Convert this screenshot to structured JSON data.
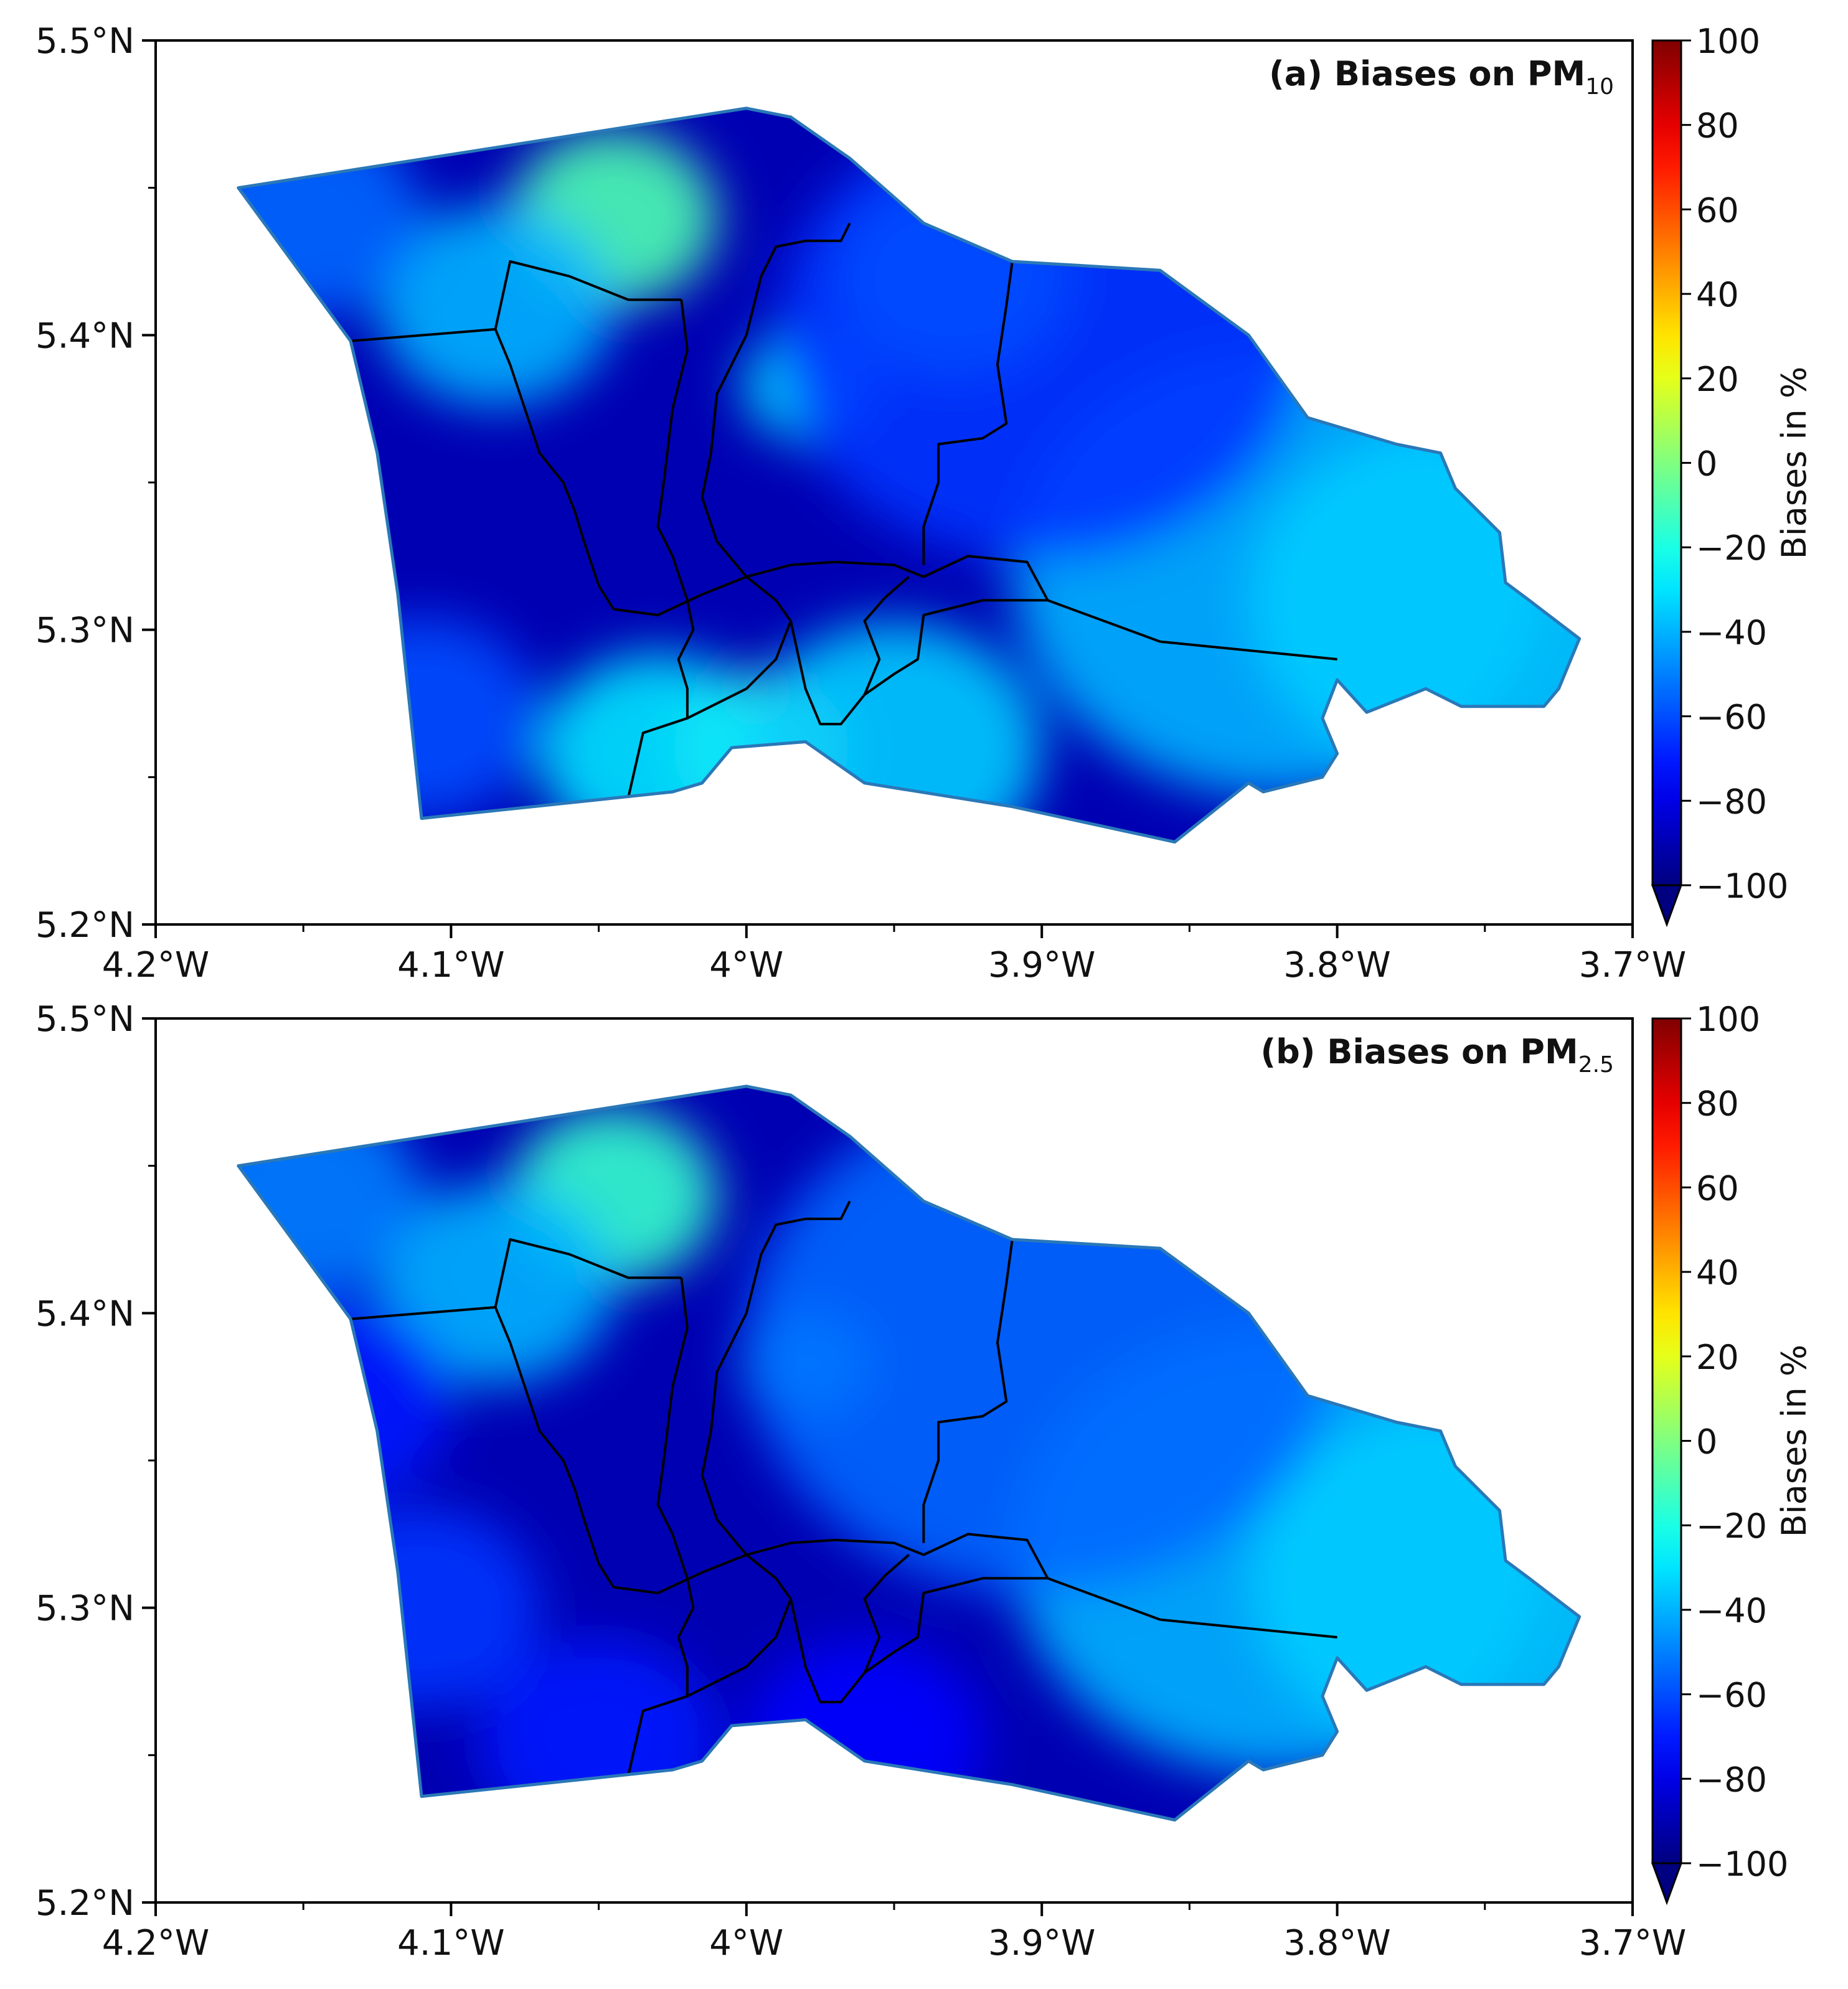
{
  "panels": [
    {
      "id": "a",
      "title": "(a) Biases on PM",
      "title_subscript": "10",
      "xlim": [
        -4.2,
        -3.7
      ],
      "ylim": [
        5.2,
        5.5
      ],
      "xticks": [
        {
          "value": -4.2,
          "label": "4.2°W"
        },
        {
          "value": -4.1,
          "label": "4.1°W"
        },
        {
          "value": -4.0,
          "label": "4°W"
        },
        {
          "value": -3.9,
          "label": "3.9°W"
        },
        {
          "value": -3.8,
          "label": "3.8°W"
        },
        {
          "value": -3.7,
          "label": "3.7°W"
        }
      ],
      "yticks": [
        {
          "value": 5.5,
          "label": "5.5°N"
        },
        {
          "value": 5.4,
          "label": "5.4°N"
        },
        {
          "value": 5.3,
          "label": "5.3°N"
        },
        {
          "value": 5.2,
          "label": "5.2°N"
        }
      ],
      "background_bias": -90,
      "blobs": [
        {
          "lon": -4.045,
          "lat": 5.44,
          "bias": -10,
          "r": 0.035
        },
        {
          "lon": -3.979,
          "lat": 5.383,
          "bias": -30,
          "r": 0.022
        },
        {
          "lon": -4.085,
          "lat": 5.41,
          "bias": -40,
          "r": 0.04
        },
        {
          "lon": -4.15,
          "lat": 5.44,
          "bias": -55,
          "r": 0.04
        },
        {
          "lon": -3.995,
          "lat": 5.26,
          "bias": -10,
          "r": 0.03
        },
        {
          "lon": -4.03,
          "lat": 5.258,
          "bias": -30,
          "r": 0.04
        },
        {
          "lon": -3.95,
          "lat": 5.26,
          "bias": -35,
          "r": 0.05
        },
        {
          "lon": -3.82,
          "lat": 5.32,
          "bias": -40,
          "r": 0.09
        },
        {
          "lon": -3.76,
          "lat": 5.31,
          "bias": -35,
          "r": 0.07
        },
        {
          "lon": -3.9,
          "lat": 5.4,
          "bias": -65,
          "r": 0.09
        },
        {
          "lon": -4.11,
          "lat": 5.27,
          "bias": -60,
          "r": 0.04
        },
        {
          "lon": -3.93,
          "lat": 5.42,
          "bias": -60,
          "r": 0.04
        }
      ]
    },
    {
      "id": "b",
      "title": "(b) Biases on PM",
      "title_subscript": "2.5",
      "xlim": [
        -4.2,
        -3.7
      ],
      "ylim": [
        5.2,
        5.5
      ],
      "xticks": [
        {
          "value": -4.2,
          "label": "4.2°W"
        },
        {
          "value": -4.1,
          "label": "4.1°W"
        },
        {
          "value": -4.0,
          "label": "4°W"
        },
        {
          "value": -3.9,
          "label": "3.9°W"
        },
        {
          "value": -3.8,
          "label": "3.8°W"
        },
        {
          "value": -3.7,
          "label": "3.7°W"
        }
      ],
      "yticks": [
        {
          "value": 5.5,
          "label": "5.5°N"
        },
        {
          "value": 5.4,
          "label": "5.4°N"
        },
        {
          "value": 5.3,
          "label": "5.3°N"
        },
        {
          "value": 5.2,
          "label": "5.2°N"
        }
      ],
      "background_bias": -90,
      "blobs": [
        {
          "lon": -4.045,
          "lat": 5.44,
          "bias": -15,
          "r": 0.035
        },
        {
          "lon": -3.979,
          "lat": 5.383,
          "bias": -25,
          "r": 0.022
        },
        {
          "lon": -4.085,
          "lat": 5.41,
          "bias": -40,
          "r": 0.04
        },
        {
          "lon": -4.15,
          "lat": 5.44,
          "bias": -50,
          "r": 0.04
        },
        {
          "lon": -3.82,
          "lat": 5.32,
          "bias": -40,
          "r": 0.09
        },
        {
          "lon": -3.76,
          "lat": 5.31,
          "bias": -35,
          "r": 0.07
        },
        {
          "lon": -3.9,
          "lat": 5.39,
          "bias": -55,
          "r": 0.1
        },
        {
          "lon": -4.11,
          "lat": 5.3,
          "bias": -65,
          "r": 0.04
        },
        {
          "lon": -4.05,
          "lat": 5.255,
          "bias": -70,
          "r": 0.04
        },
        {
          "lon": -3.96,
          "lat": 5.255,
          "bias": -75,
          "r": 0.04
        },
        {
          "lon": -4.14,
          "lat": 5.37,
          "bias": -70,
          "r": 0.04
        }
      ]
    }
  ],
  "colorbar": {
    "label": "Biases in %",
    "min": -100,
    "max": 100,
    "extend": "min",
    "colormap": "jet",
    "ticks": [
      {
        "value": 100,
        "label": "100"
      },
      {
        "value": 80,
        "label": "80"
      },
      {
        "value": 60,
        "label": "60"
      },
      {
        "value": 40,
        "label": "40"
      },
      {
        "value": 20,
        "label": "20"
      },
      {
        "value": 0,
        "label": "0"
      },
      {
        "value": -20,
        "label": "−20"
      },
      {
        "value": -40,
        "label": "−40"
      },
      {
        "value": -60,
        "label": "−60"
      },
      {
        "value": -80,
        "label": "−80"
      },
      {
        "value": -100,
        "label": "−100"
      }
    ]
  },
  "study_area": {
    "outline": [
      [
        -4.172,
        5.45
      ],
      [
        -4.0,
        5.477
      ],
      [
        -3.985,
        5.474
      ],
      [
        -3.965,
        5.46
      ],
      [
        -3.94,
        5.438
      ],
      [
        -3.91,
        5.425
      ],
      [
        -3.86,
        5.422
      ],
      [
        -3.83,
        5.4
      ],
      [
        -3.81,
        5.372
      ],
      [
        -3.78,
        5.363
      ],
      [
        -3.765,
        5.36
      ],
      [
        -3.76,
        5.348
      ],
      [
        -3.745,
        5.333
      ],
      [
        -3.743,
        5.316
      ],
      [
        -3.735,
        5.31
      ],
      [
        -3.718,
        5.297
      ],
      [
        -3.725,
        5.28
      ],
      [
        -3.73,
        5.274
      ],
      [
        -3.758,
        5.274
      ],
      [
        -3.77,
        5.28
      ],
      [
        -3.79,
        5.272
      ],
      [
        -3.8,
        5.283
      ],
      [
        -3.805,
        5.27
      ],
      [
        -3.8,
        5.258
      ],
      [
        -3.805,
        5.25
      ],
      [
        -3.825,
        5.245
      ],
      [
        -3.83,
        5.248
      ],
      [
        -3.855,
        5.228
      ],
      [
        -3.91,
        5.24
      ],
      [
        -3.96,
        5.248
      ],
      [
        -3.98,
        5.262
      ],
      [
        -4.005,
        5.26
      ],
      [
        -4.015,
        5.248
      ],
      [
        -4.025,
        5.245
      ],
      [
        -4.11,
        5.236
      ],
      [
        -4.118,
        5.312
      ],
      [
        -4.125,
        5.36
      ],
      [
        -4.134,
        5.398
      ]
    ],
    "boundaries": [
      [
        [
          -4.134,
          5.398
        ],
        [
          -4.085,
          5.402
        ],
        [
          -4.08,
          5.425
        ],
        [
          -4.06,
          5.42
        ],
        [
          -4.04,
          5.412
        ],
        [
          -4.03,
          5.412
        ],
        [
          -4.022,
          5.412
        ]
      ],
      [
        [
          -4.085,
          5.402
        ],
        [
          -4.08,
          5.39
        ],
        [
          -4.075,
          5.375
        ],
        [
          -4.07,
          5.36
        ],
        [
          -4.062,
          5.35
        ],
        [
          -4.058,
          5.34
        ],
        [
          -4.055,
          5.33
        ],
        [
          -4.05,
          5.315
        ],
        [
          -4.045,
          5.307
        ]
      ],
      [
        [
          -4.022,
          5.412
        ],
        [
          -4.02,
          5.395
        ],
        [
          -4.025,
          5.375
        ],
        [
          -4.028,
          5.35
        ],
        [
          -4.03,
          5.335
        ],
        [
          -4.025,
          5.325
        ],
        [
          -4.02,
          5.31
        ],
        [
          -4.018,
          5.3
        ],
        [
          -4.023,
          5.29
        ],
        [
          -4.02,
          5.28
        ],
        [
          -4.02,
          5.27
        ],
        [
          -4.035,
          5.265
        ],
        [
          -4.04,
          5.243
        ]
      ],
      [
        [
          -4.045,
          5.307
        ],
        [
          -4.03,
          5.305
        ],
        [
          -4.015,
          5.312
        ],
        [
          -4.0,
          5.318
        ],
        [
          -3.985,
          5.322
        ],
        [
          -3.97,
          5.323
        ],
        [
          -3.95,
          5.322
        ],
        [
          -3.94,
          5.318
        ],
        [
          -3.925,
          5.325
        ],
        [
          -3.905,
          5.323
        ],
        [
          -3.898,
          5.31
        ]
      ],
      [
        [
          -4.02,
          5.27
        ],
        [
          -4.0,
          5.28
        ],
        [
          -3.99,
          5.29
        ],
        [
          -3.985,
          5.303
        ],
        [
          -3.99,
          5.31
        ],
        [
          -4.0,
          5.318
        ],
        [
          -4.01,
          5.33
        ],
        [
          -4.015,
          5.345
        ],
        [
          -4.012,
          5.36
        ],
        [
          -4.01,
          5.38
        ],
        [
          -4.0,
          5.4
        ],
        [
          -3.995,
          5.42
        ],
        [
          -3.99,
          5.43
        ],
        [
          -3.98,
          5.432
        ],
        [
          -3.968,
          5.432
        ],
        [
          -3.965,
          5.438
        ]
      ],
      [
        [
          -3.985,
          5.303
        ],
        [
          -3.98,
          5.28
        ],
        [
          -3.975,
          5.268
        ],
        [
          -3.968,
          5.268
        ],
        [
          -3.96,
          5.278
        ],
        [
          -3.95,
          5.285
        ],
        [
          -3.942,
          5.29
        ],
        [
          -3.94,
          5.305
        ],
        [
          -3.92,
          5.31
        ],
        [
          -3.898,
          5.31
        ],
        [
          -3.86,
          5.296
        ],
        [
          -3.8,
          5.29
        ]
      ],
      [
        [
          -3.96,
          5.278
        ],
        [
          -3.955,
          5.29
        ],
        [
          -3.96,
          5.303
        ],
        [
          -3.953,
          5.311
        ],
        [
          -3.945,
          5.318
        ]
      ],
      [
        [
          -3.91,
          5.425
        ],
        [
          -3.912,
          5.41
        ],
        [
          -3.915,
          5.39
        ],
        [
          -3.912,
          5.37
        ],
        [
          -3.92,
          5.365
        ],
        [
          -3.935,
          5.363
        ],
        [
          -3.935,
          5.35
        ],
        [
          -3.94,
          5.335
        ],
        [
          -3.94,
          5.322
        ]
      ]
    ]
  }
}
